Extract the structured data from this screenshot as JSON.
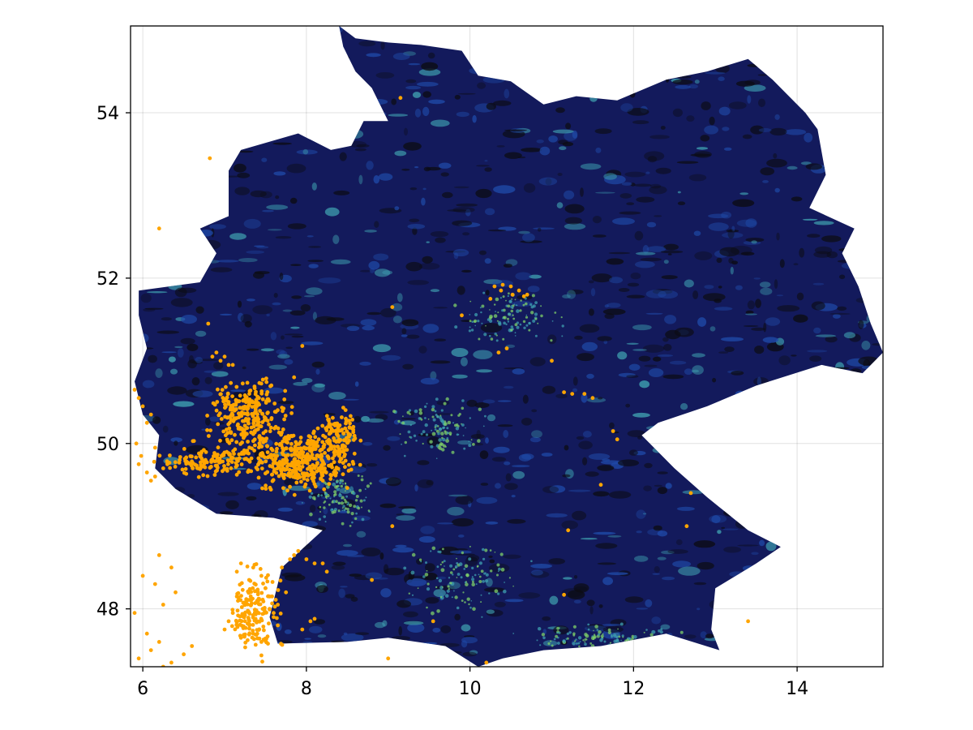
{
  "colors": {
    "raster_dark": "#0c0c14",
    "raster_base": "#131a5c",
    "raster_mid": "#1f4aa8",
    "raster_high": "#3fa0b0",
    "raster_peak": "#7fd06a",
    "points": "#ffa500",
    "grid": "#e6e6e6"
  },
  "chart_data": {
    "type": "scatter",
    "title": "",
    "xlabel": "",
    "ylabel": "",
    "xlim": [
      5.85,
      15.05
    ],
    "ylim": [
      47.3,
      55.05
    ],
    "xticks": [
      6,
      8,
      10,
      12,
      14
    ],
    "yticks": [
      48,
      50,
      52,
      54
    ],
    "xtick_labels": [
      "6",
      "8",
      "10",
      "12",
      "14"
    ],
    "ytick_labels": [
      "48",
      "50",
      "52",
      "54"
    ],
    "grid": true,
    "legend": "none",
    "raster_outline_lonlat": [
      [
        8.4,
        55.05
      ],
      [
        8.6,
        54.9
      ],
      [
        9.0,
        54.85
      ],
      [
        9.4,
        54.82
      ],
      [
        9.9,
        54.75
      ],
      [
        10.1,
        54.45
      ],
      [
        10.5,
        54.38
      ],
      [
        10.9,
        54.1
      ],
      [
        11.3,
        54.2
      ],
      [
        11.8,
        54.15
      ],
      [
        12.4,
        54.4
      ],
      [
        12.9,
        54.5
      ],
      [
        13.4,
        54.65
      ],
      [
        13.7,
        54.4
      ],
      [
        14.1,
        54.0
      ],
      [
        14.25,
        53.8
      ],
      [
        14.35,
        53.25
      ],
      [
        14.15,
        52.85
      ],
      [
        14.7,
        52.6
      ],
      [
        14.55,
        52.3
      ],
      [
        14.75,
        51.9
      ],
      [
        14.9,
        51.45
      ],
      [
        15.05,
        51.1
      ],
      [
        14.8,
        50.85
      ],
      [
        14.3,
        50.95
      ],
      [
        13.5,
        50.7
      ],
      [
        12.9,
        50.45
      ],
      [
        12.3,
        50.25
      ],
      [
        12.1,
        50.1
      ],
      [
        12.5,
        49.7
      ],
      [
        12.9,
        49.35
      ],
      [
        13.4,
        48.95
      ],
      [
        13.8,
        48.75
      ],
      [
        13.5,
        48.55
      ],
      [
        13.0,
        48.25
      ],
      [
        12.95,
        47.75
      ],
      [
        13.05,
        47.5
      ],
      [
        12.4,
        47.7
      ],
      [
        11.6,
        47.55
      ],
      [
        10.9,
        47.5
      ],
      [
        10.4,
        47.4
      ],
      [
        10.1,
        47.3
      ],
      [
        9.7,
        47.55
      ],
      [
        9.0,
        47.65
      ],
      [
        8.5,
        47.6
      ],
      [
        7.65,
        47.58
      ],
      [
        7.55,
        47.9
      ],
      [
        7.7,
        48.5
      ],
      [
        8.2,
        48.95
      ],
      [
        7.6,
        49.1
      ],
      [
        6.9,
        49.15
      ],
      [
        6.4,
        49.45
      ],
      [
        6.15,
        49.7
      ],
      [
        6.2,
        50.1
      ],
      [
        6.0,
        50.35
      ],
      [
        5.9,
        50.75
      ],
      [
        6.05,
        51.15
      ],
      [
        5.95,
        51.55
      ],
      [
        5.95,
        51.85
      ],
      [
        6.7,
        51.95
      ],
      [
        6.9,
        52.3
      ],
      [
        6.7,
        52.6
      ],
      [
        7.05,
        52.75
      ],
      [
        7.05,
        53.3
      ],
      [
        7.2,
        53.55
      ],
      [
        7.9,
        53.75
      ],
      [
        8.3,
        53.55
      ],
      [
        8.55,
        53.6
      ],
      [
        8.7,
        53.9
      ],
      [
        9.0,
        53.9
      ],
      [
        8.8,
        54.3
      ],
      [
        8.6,
        54.5
      ],
      [
        8.45,
        54.8
      ]
    ],
    "points": {
      "x": [
        9.15,
        6.82,
        6.2,
        6.8,
        9.05,
        9.9,
        7.95,
        7.85,
        10.3,
        10.4,
        10.5,
        10.6,
        10.7,
        10.25,
        10.38,
        10.52,
        10.66,
        10.45,
        10.35,
        11.0,
        11.15,
        11.25,
        11.4,
        11.5,
        11.75,
        11.8,
        11.6,
        12.7,
        12.65,
        11.2,
        11.15,
        9.05,
        8.8,
        8.2,
        8.25,
        8.1,
        8.05,
        7.95,
        9.55,
        13.4,
        10.2,
        9.0,
        6.85,
        6.95,
        7.05,
        7.0,
        6.9,
        7.1,
        5.9,
        5.95,
        6.0,
        6.1,
        6.05,
        5.92,
        6.15,
        5.98,
        5.95,
        6.05,
        6.15,
        6.25,
        6.1,
        6.3,
        6.45,
        6.2,
        6.35,
        6.0,
        6.15,
        6.4,
        6.25,
        5.9,
        6.05,
        6.2,
        6.1,
        5.95,
        6.25,
        6.35,
        6.5,
        6.6,
        7.2,
        7.35,
        7.45,
        7.3,
        7.5,
        7.15,
        7.4,
        7.25,
        7.55,
        7.1,
        7.6,
        7.05,
        7.65,
        7.0,
        7.2,
        7.35,
        7.45,
        7.3,
        7.5,
        7.15,
        7.4,
        7.25,
        7.55,
        7.8,
        7.85,
        7.9,
        8.0,
        8.1,
        7.7,
        7.75,
        7.65,
        7.6
      ],
      "y": [
        54.18,
        53.45,
        52.6,
        51.45,
        51.65,
        51.55,
        51.18,
        50.8,
        51.9,
        51.92,
        51.9,
        51.85,
        51.8,
        51.75,
        51.85,
        51.8,
        51.78,
        51.15,
        51.1,
        51.0,
        50.62,
        50.6,
        50.6,
        50.55,
        50.15,
        50.05,
        49.5,
        49.4,
        49.0,
        48.95,
        48.17,
        49.0,
        48.35,
        48.55,
        48.45,
        47.88,
        47.85,
        47.75,
        47.85,
        47.85,
        47.35,
        47.4,
        51.05,
        51.0,
        50.95,
        51.05,
        51.1,
        50.95,
        50.65,
        50.55,
        50.45,
        50.35,
        50.25,
        50.0,
        49.95,
        49.85,
        49.75,
        49.65,
        49.6,
        49.7,
        49.55,
        49.75,
        49.8,
        48.65,
        48.5,
        48.4,
        48.3,
        48.2,
        48.05,
        47.95,
        47.7,
        47.6,
        47.5,
        47.4,
        47.3,
        47.35,
        47.45,
        47.55,
        48.55,
        48.5,
        48.4,
        48.35,
        48.25,
        48.15,
        48.1,
        48.05,
        48.0,
        47.95,
        47.9,
        47.85,
        47.8,
        47.75,
        47.65,
        47.7,
        47.6,
        47.95,
        48.25,
        48.45,
        47.7,
        47.85,
        48.15,
        48.6,
        48.65,
        48.7,
        48.6,
        48.55,
        48.5,
        48.2,
        48.05,
        47.95
      ]
    },
    "dense_clusters": [
      {
        "center_lon": 7.3,
        "center_lat": 50.35,
        "spread_lon": 0.35,
        "spread_lat": 0.35,
        "count": 260
      },
      {
        "center_lon": 6.9,
        "center_lat": 49.78,
        "spread_lon": 0.55,
        "spread_lat": 0.15,
        "count": 140
      },
      {
        "center_lon": 7.95,
        "center_lat": 49.8,
        "spread_lon": 0.45,
        "spread_lat": 0.28,
        "count": 360
      },
      {
        "center_lon": 8.4,
        "center_lat": 50.05,
        "spread_lon": 0.22,
        "spread_lat": 0.25,
        "count": 120
      },
      {
        "center_lon": 7.35,
        "center_lat": 47.98,
        "spread_lon": 0.25,
        "spread_lat": 0.4,
        "count": 160
      }
    ]
  }
}
